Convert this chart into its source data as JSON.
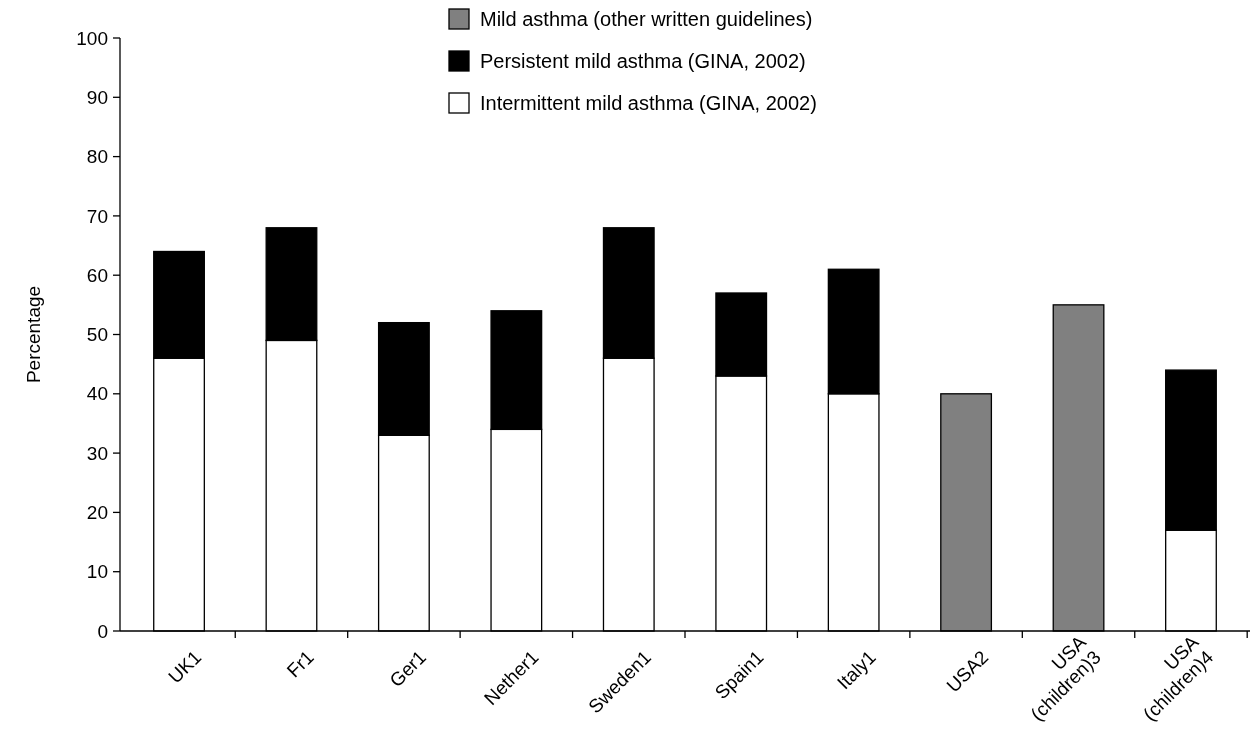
{
  "chart_data": {
    "type": "bar",
    "stacked": true,
    "ylabel": "Percentage",
    "categories": [
      "UK1",
      "Fr1",
      "Ger1",
      "Nether1",
      "Sweden1",
      "Spain1",
      "Italy1",
      "USA2",
      "USA (children)3",
      "USA (children)4"
    ],
    "series": [
      {
        "name": "Intermittent mild asthma (GINA, 2002)",
        "color": "#ffffff",
        "values": [
          46,
          49,
          33,
          34,
          46,
          43,
          40,
          null,
          null,
          17
        ]
      },
      {
        "name": "Persistent mild asthma (GINA, 2002)",
        "color": "#000000",
        "values": [
          18,
          19,
          19,
          20,
          22,
          14,
          21,
          null,
          null,
          27
        ]
      },
      {
        "name": "Mild asthma (other written guidelines)",
        "color": "#808080",
        "values": [
          null,
          null,
          null,
          null,
          null,
          null,
          null,
          40,
          55,
          null
        ]
      }
    ],
    "ylim": [
      0,
      100
    ],
    "yticks": [
      0,
      10,
      20,
      30,
      40,
      50,
      60,
      70,
      80,
      90,
      100
    ],
    "grid": false,
    "legend": "top"
  }
}
